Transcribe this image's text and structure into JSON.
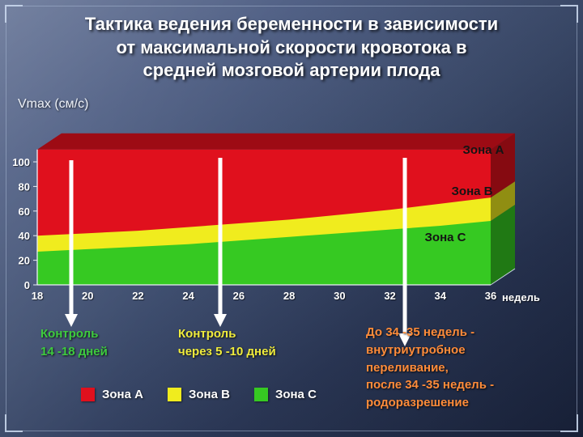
{
  "slide": {
    "title": "Тактика ведения беременности в зависимости\nот максимальной скорости кровотока в\nсредней мозговой артерии плода"
  },
  "chart_data": {
    "type": "area",
    "title": "Тактика ведения беременности в зависимости от максимальной скорости кровотока в средней мозговой артерии плода",
    "ylabel": "Vmax (см/с)",
    "xlabel": "недель",
    "x": [
      18,
      20,
      22,
      24,
      26,
      28,
      30,
      32,
      34,
      36
    ],
    "xlim": [
      18,
      36
    ],
    "ylim": [
      0,
      110
    ],
    "yticks": [
      0,
      20,
      40,
      60,
      80,
      100
    ],
    "grid": false,
    "legend_position": "bottom",
    "series": [
      {
        "name": "Зона A",
        "color": "#e0101d",
        "top_values": [
          110,
          110,
          110,
          110,
          110,
          110,
          110,
          110,
          110,
          110
        ]
      },
      {
        "name": "Зона B",
        "color": "#f0ec1e",
        "top_values": [
          40,
          42,
          44,
          47,
          50,
          53,
          57,
          61,
          66,
          71
        ]
      },
      {
        "name": "Зона C",
        "color": "#36c922",
        "top_values": [
          27,
          29,
          31,
          33,
          36,
          39,
          42,
          45,
          48,
          52
        ]
      }
    ]
  },
  "annotations": [
    {
      "text": "Контроль\n14 -18 дней",
      "color": "#3ecb3e"
    },
    {
      "text": "Контроль\nчерез 5 -10 дней",
      "color": "#f0ec3c"
    },
    {
      "text": "До 34 -35 недель -\nвнутриутробное\nпереливание,\nпосле 34 -35 недель -\nродоразрешение",
      "color": "#ff8c3a"
    }
  ]
}
